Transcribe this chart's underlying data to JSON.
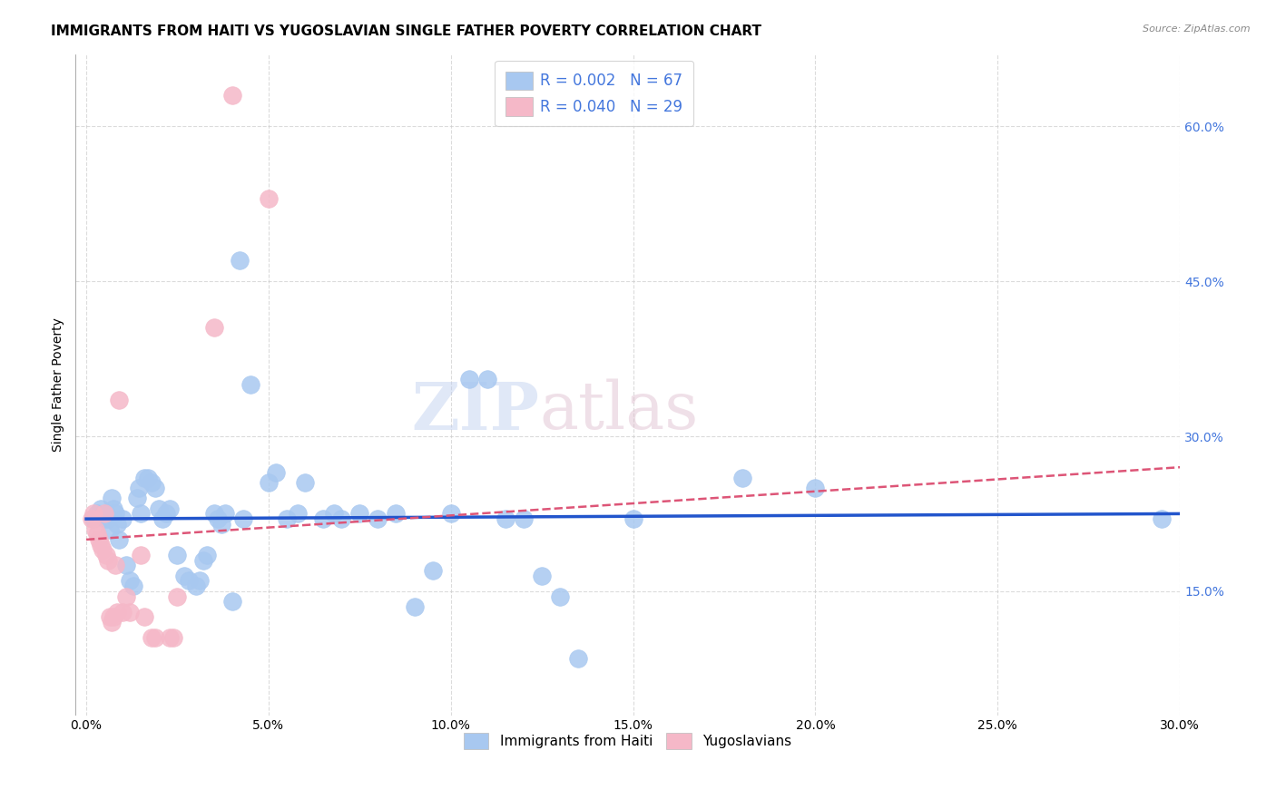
{
  "title": "IMMIGRANTS FROM HAITI VS YUGOSLAVIAN SINGLE FATHER POVERTY CORRELATION CHART",
  "source": "Source: ZipAtlas.com",
  "ylabel": "Single Father Poverty",
  "x_tick_labels": [
    "0.0%",
    "5.0%",
    "10.0%",
    "15.0%",
    "20.0%",
    "25.0%",
    "30.0%"
  ],
  "x_tick_values": [
    0,
    5,
    10,
    15,
    20,
    25,
    30
  ],
  "y_tick_labels": [
    "15.0%",
    "30.0%",
    "45.0%",
    "60.0%"
  ],
  "y_tick_values": [
    15,
    30,
    45,
    60
  ],
  "xlim": [
    -0.3,
    30
  ],
  "ylim": [
    3,
    67
  ],
  "legend_label1": "R = 0.002   N = 67",
  "legend_label2": "R = 0.040   N = 29",
  "legend_bottom_label1": "Immigrants from Haiti",
  "legend_bottom_label2": "Yugoslavians",
  "blue_color": "#A8C8F0",
  "pink_color": "#F5B8C8",
  "blue_edge_color": "#90B8E8",
  "pink_edge_color": "#ECA0B4",
  "blue_line_color": "#2255CC",
  "pink_line_color": "#DD5577",
  "blue_scatter": [
    [
      0.2,
      22.0
    ],
    [
      0.3,
      22.5
    ],
    [
      0.4,
      23.0
    ],
    [
      0.5,
      22.0
    ],
    [
      0.55,
      22.5
    ],
    [
      0.6,
      22.0
    ],
    [
      0.65,
      21.0
    ],
    [
      0.7,
      24.0
    ],
    [
      0.75,
      23.0
    ],
    [
      0.8,
      22.5
    ],
    [
      0.85,
      21.5
    ],
    [
      0.9,
      20.0
    ],
    [
      1.0,
      22.0
    ],
    [
      1.1,
      17.5
    ],
    [
      1.2,
      16.0
    ],
    [
      1.3,
      15.5
    ],
    [
      1.4,
      24.0
    ],
    [
      1.45,
      25.0
    ],
    [
      1.5,
      22.5
    ],
    [
      1.6,
      26.0
    ],
    [
      1.7,
      26.0
    ],
    [
      1.8,
      25.5
    ],
    [
      1.9,
      25.0
    ],
    [
      2.0,
      23.0
    ],
    [
      2.1,
      22.0
    ],
    [
      2.2,
      22.5
    ],
    [
      2.3,
      23.0
    ],
    [
      2.5,
      18.5
    ],
    [
      2.7,
      16.5
    ],
    [
      2.8,
      16.0
    ],
    [
      3.0,
      15.5
    ],
    [
      3.1,
      16.0
    ],
    [
      3.2,
      18.0
    ],
    [
      3.3,
      18.5
    ],
    [
      3.5,
      22.5
    ],
    [
      3.6,
      22.0
    ],
    [
      3.7,
      21.5
    ],
    [
      3.8,
      22.5
    ],
    [
      4.0,
      14.0
    ],
    [
      4.2,
      47.0
    ],
    [
      4.3,
      22.0
    ],
    [
      4.5,
      35.0
    ],
    [
      5.0,
      25.5
    ],
    [
      5.2,
      26.5
    ],
    [
      5.5,
      22.0
    ],
    [
      5.8,
      22.5
    ],
    [
      6.0,
      25.5
    ],
    [
      6.5,
      22.0
    ],
    [
      6.8,
      22.5
    ],
    [
      7.0,
      22.0
    ],
    [
      7.5,
      22.5
    ],
    [
      8.0,
      22.0
    ],
    [
      8.5,
      22.5
    ],
    [
      9.0,
      13.5
    ],
    [
      9.5,
      17.0
    ],
    [
      10.0,
      22.5
    ],
    [
      10.5,
      35.5
    ],
    [
      11.0,
      35.5
    ],
    [
      11.5,
      22.0
    ],
    [
      12.0,
      22.0
    ],
    [
      12.5,
      16.5
    ],
    [
      13.0,
      14.5
    ],
    [
      13.5,
      8.5
    ],
    [
      15.0,
      22.0
    ],
    [
      18.0,
      26.0
    ],
    [
      20.0,
      25.0
    ],
    [
      29.5,
      22.0
    ]
  ],
  "pink_scatter": [
    [
      0.15,
      22.0
    ],
    [
      0.2,
      22.5
    ],
    [
      0.25,
      21.0
    ],
    [
      0.3,
      20.5
    ],
    [
      0.35,
      20.0
    ],
    [
      0.4,
      19.5
    ],
    [
      0.45,
      19.0
    ],
    [
      0.5,
      22.5
    ],
    [
      0.55,
      18.5
    ],
    [
      0.6,
      18.0
    ],
    [
      0.65,
      12.5
    ],
    [
      0.7,
      12.0
    ],
    [
      0.75,
      12.5
    ],
    [
      0.8,
      17.5
    ],
    [
      0.85,
      13.0
    ],
    [
      0.9,
      33.5
    ],
    [
      1.0,
      13.0
    ],
    [
      1.1,
      14.5
    ],
    [
      1.2,
      13.0
    ],
    [
      1.5,
      18.5
    ],
    [
      1.6,
      12.5
    ],
    [
      1.8,
      10.5
    ],
    [
      1.9,
      10.5
    ],
    [
      2.3,
      10.5
    ],
    [
      2.4,
      10.5
    ],
    [
      2.5,
      14.5
    ],
    [
      3.5,
      40.5
    ],
    [
      4.0,
      63.0
    ],
    [
      5.0,
      53.0
    ]
  ],
  "blue_trend_x": [
    0,
    30
  ],
  "blue_trend_y": [
    22.0,
    22.5
  ],
  "pink_trend_x": [
    0,
    30
  ],
  "pink_trend_y": [
    20.0,
    27.0
  ],
  "watermark_zip": "ZIP",
  "watermark_atlas": "atlas",
  "marker_size": 200,
  "background_color": "#FFFFFF",
  "grid_color": "#CCCCCC",
  "title_fontsize": 11,
  "axis_label_fontsize": 10,
  "tick_fontsize": 10,
  "right_tick_color": "#4477DD"
}
